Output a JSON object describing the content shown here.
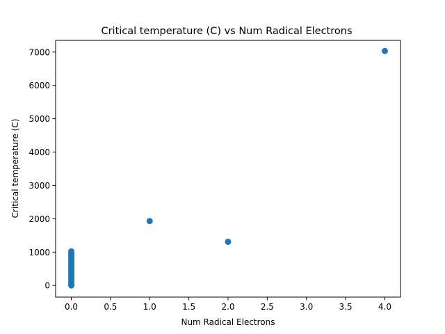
{
  "chart_data": {
    "type": "scatter",
    "title": "Critical temperature (C) vs Num Radical Electrons",
    "xlabel": "Num Radical Electrons",
    "ylabel": "Critical temperature (C)",
    "xlim": [
      -0.2,
      4.2
    ],
    "ylim": [
      -350,
      7350
    ],
    "x_ticks": [
      0.0,
      0.5,
      1.0,
      1.5,
      2.0,
      2.5,
      3.0,
      3.5,
      4.0
    ],
    "x_tick_labels": [
      "0.0",
      "0.5",
      "1.0",
      "1.5",
      "2.0",
      "2.5",
      "3.0",
      "3.5",
      "4.0"
    ],
    "y_ticks": [
      0,
      1000,
      2000,
      3000,
      4000,
      5000,
      6000,
      7000
    ],
    "y_tick_labels": [
      "0",
      "1000",
      "2000",
      "3000",
      "4000",
      "5000",
      "6000",
      "7000"
    ],
    "grid": false,
    "legend": "none",
    "marker_color": "#1f77b4",
    "series": [
      {
        "points": [
          {
            "x": 0,
            "y": 0
          },
          {
            "x": 0,
            "y": 40
          },
          {
            "x": 0,
            "y": 90
          },
          {
            "x": 0,
            "y": 150
          },
          {
            "x": 0,
            "y": 200
          },
          {
            "x": 0,
            "y": 260
          },
          {
            "x": 0,
            "y": 310
          },
          {
            "x": 0,
            "y": 360
          },
          {
            "x": 0,
            "y": 420
          },
          {
            "x": 0,
            "y": 470
          },
          {
            "x": 0,
            "y": 520
          },
          {
            "x": 0,
            "y": 580
          },
          {
            "x": 0,
            "y": 630
          },
          {
            "x": 0,
            "y": 680
          },
          {
            "x": 0,
            "y": 740
          },
          {
            "x": 0,
            "y": 790
          },
          {
            "x": 0,
            "y": 850
          },
          {
            "x": 0,
            "y": 900
          },
          {
            "x": 0,
            "y": 950
          },
          {
            "x": 0,
            "y": 1020
          },
          {
            "x": 1,
            "y": 1930
          },
          {
            "x": 2,
            "y": 1310
          },
          {
            "x": 4,
            "y": 7030
          }
        ]
      }
    ]
  }
}
